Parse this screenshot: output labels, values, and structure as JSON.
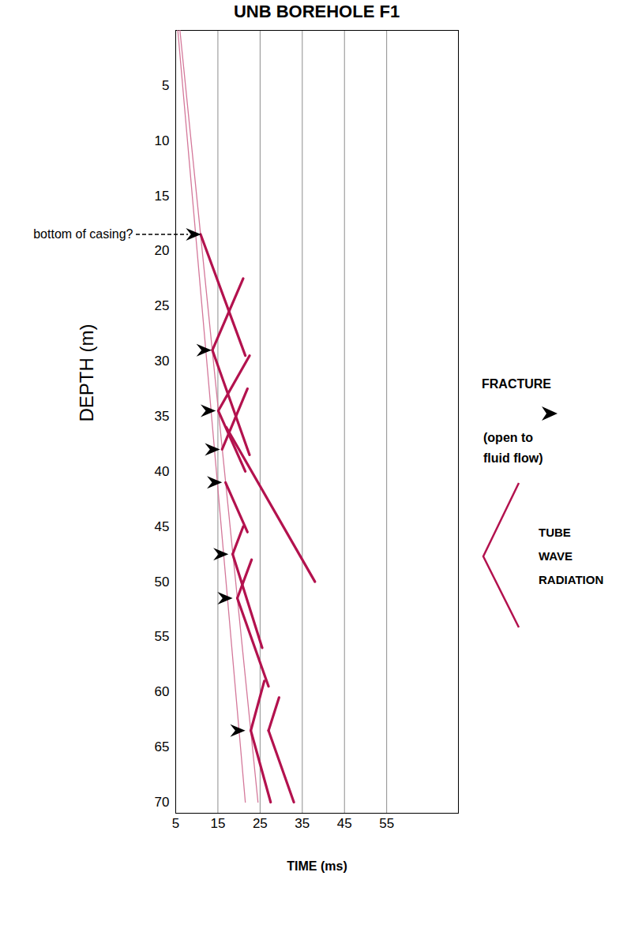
{
  "chart_data": {
    "type": "line",
    "title": "UNB BOREHOLE F1",
    "xlabel": "TIME (ms)",
    "ylabel": "DEPTH (m)",
    "xlim": [
      5,
      72
    ],
    "xticks": [
      5,
      15,
      25,
      35,
      45,
      55
    ],
    "ylim": [
      0,
      71
    ],
    "yticks": [
      5,
      10,
      15,
      20,
      25,
      30,
      35,
      40,
      45,
      50,
      55,
      60,
      65,
      70
    ],
    "grid": true,
    "legend": "right",
    "series": [
      {
        "color": "#d4789a",
        "line_style": "thin",
        "x": [
          5.5,
          21.5
        ],
        "y": [
          0,
          70
        ]
      },
      {
        "color": "#d4789a",
        "line_style": "thin",
        "x": [
          6,
          24.5
        ],
        "y": [
          0,
          70
        ]
      },
      {
        "color": "#b3124e",
        "line_style": "thick",
        "x": [
          10.9,
          21.5
        ],
        "y": [
          18.5,
          29.5
        ]
      },
      {
        "color": "#b3124e",
        "line_style": "thick",
        "x": [
          13.7,
          21
        ],
        "y": [
          29,
          22.5
        ]
      },
      {
        "color": "#b3124e",
        "line_style": "thick",
        "x": [
          13.7,
          22.5
        ],
        "y": [
          29,
          38.5
        ]
      },
      {
        "color": "#b3124e",
        "line_style": "thick",
        "x": [
          15.1,
          22.5
        ],
        "y": [
          34.5,
          29.5
        ]
      },
      {
        "color": "#b3124e",
        "line_style": "thick",
        "x": [
          15.1,
          21.5
        ],
        "y": [
          34.5,
          40
        ]
      },
      {
        "color": "#b3124e",
        "line_style": "thick",
        "x": [
          16,
          22
        ],
        "y": [
          38,
          32.5
        ]
      },
      {
        "color": "#b3124e",
        "line_style": "thick",
        "x": [
          17,
          38
        ],
        "y": [
          36,
          50
        ]
      },
      {
        "color": "#b3124e",
        "line_style": "thick",
        "x": [
          16.8,
          22
        ],
        "y": [
          41,
          45.5
        ]
      },
      {
        "color": "#b3124e",
        "line_style": "thick",
        "x": [
          18.5,
          21
        ],
        "y": [
          47.5,
          45
        ]
      },
      {
        "color": "#b3124e",
        "line_style": "thick",
        "x": [
          18.5,
          25.5
        ],
        "y": [
          47.5,
          56
        ]
      },
      {
        "color": "#b3124e",
        "line_style": "thick",
        "x": [
          19.6,
          23
        ],
        "y": [
          51.5,
          48
        ]
      },
      {
        "color": "#b3124e",
        "line_style": "thick",
        "x": [
          19.6,
          27
        ],
        "y": [
          51.5,
          59.5
        ]
      },
      {
        "color": "#b3124e",
        "line_style": "thick",
        "x": [
          22.8,
          26
        ],
        "y": [
          63.5,
          59
        ]
      },
      {
        "color": "#b3124e",
        "line_style": "thick",
        "x": [
          22.8,
          27.5
        ],
        "y": [
          63.5,
          70
        ]
      },
      {
        "color": "#b3124e",
        "line_style": "thick",
        "x": [
          27,
          29.5
        ],
        "y": [
          63.5,
          60.5
        ]
      },
      {
        "color": "#b3124e",
        "line_style": "thick",
        "x": [
          27,
          33
        ],
        "y": [
          63.5,
          70
        ]
      }
    ],
    "casing": {
      "label": "bottom of casing?",
      "depth": 18.5,
      "time": 11
    },
    "fractures": [
      {
        "depth": 29,
        "time": 13.5
      },
      {
        "depth": 34.5,
        "time": 14.5
      },
      {
        "depth": 38,
        "time": 15.5
      },
      {
        "depth": 41,
        "time": 16
      },
      {
        "depth": 47.5,
        "time": 17.5
      },
      {
        "depth": 51.5,
        "time": 18.5
      },
      {
        "depth": 63.5,
        "time": 21.5
      }
    ],
    "annotations": {
      "fracture": {
        "label": "FRACTURE",
        "note": [
          "(open to",
          "fluid flow)"
        ]
      },
      "tube_wave": {
        "label": [
          "TUBE",
          "WAVE",
          "RADIATION"
        ],
        "color": "#b3124e"
      }
    }
  }
}
